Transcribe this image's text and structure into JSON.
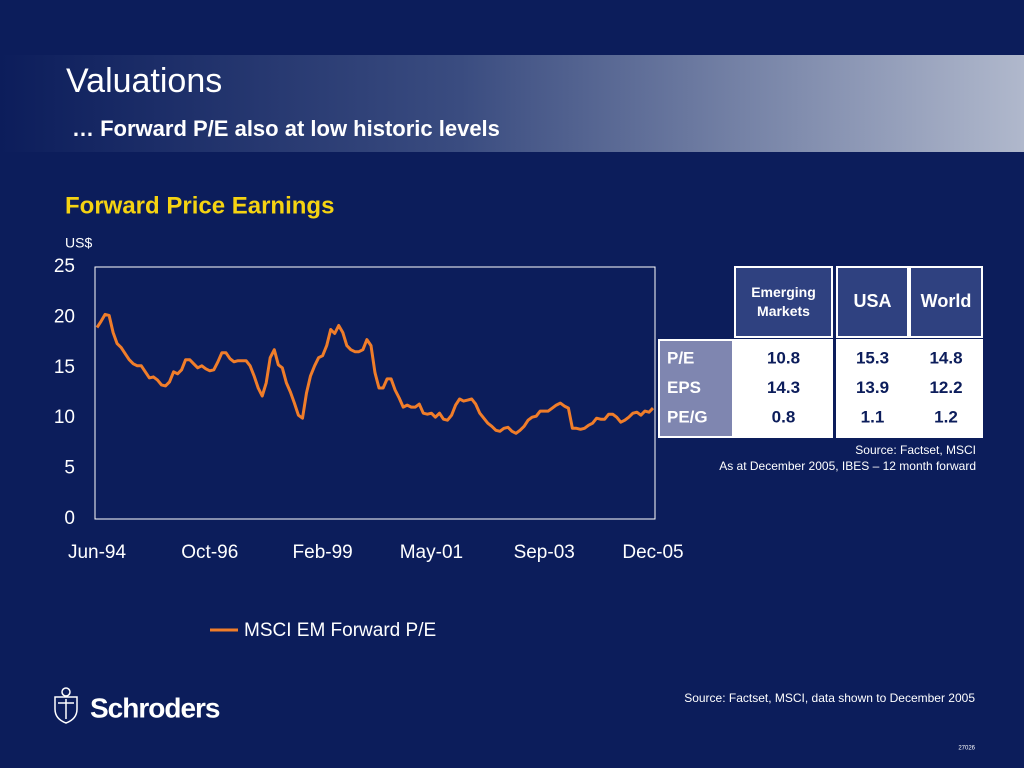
{
  "header": {
    "title": "Valuations",
    "subtitle": "… Forward P/E also at low historic levels"
  },
  "chart_data": {
    "type": "line",
    "title": "Forward Price Earnings",
    "y_label": "US$",
    "categories": [
      "Jun-94",
      null,
      null,
      null,
      null,
      null,
      null,
      null,
      null,
      null,
      null,
      null,
      null,
      null,
      null,
      null,
      null,
      null,
      null,
      null,
      null,
      null,
      null,
      null,
      null,
      null,
      null,
      null,
      "Oct-96",
      null,
      null,
      null,
      null,
      null,
      null,
      null,
      null,
      null,
      null,
      null,
      null,
      null,
      null,
      null,
      null,
      null,
      null,
      null,
      null,
      null,
      null,
      null,
      null,
      null,
      null,
      null,
      "Feb-99",
      null,
      null,
      null,
      null,
      null,
      null,
      null,
      null,
      null,
      null,
      null,
      null,
      null,
      null,
      null,
      null,
      null,
      null,
      null,
      null,
      null,
      null,
      null,
      null,
      null,
      null,
      "May-01",
      null,
      null,
      null,
      null,
      null,
      null,
      null,
      null,
      null,
      null,
      null,
      null,
      null,
      null,
      null,
      null,
      null,
      null,
      null,
      null,
      null,
      null,
      null,
      null,
      null,
      null,
      null,
      "Sep-03",
      null,
      null,
      null,
      null,
      null,
      null,
      null,
      null,
      null,
      null,
      null,
      null,
      null,
      null,
      null,
      null,
      null,
      null,
      null,
      null,
      null,
      null,
      null,
      null,
      null,
      null,
      "Dec-05"
    ],
    "series": [
      {
        "name": "MSCI EM Forward P/E",
        "color": "#f07d2a",
        "values": [
          19.0,
          19.6,
          20.3,
          20.2,
          18.5,
          17.4,
          17.0,
          16.4,
          15.8,
          15.4,
          15.2,
          15.2,
          14.6,
          14.0,
          14.1,
          13.8,
          13.3,
          13.2,
          13.6,
          14.6,
          14.4,
          14.8,
          15.8,
          15.8,
          15.4,
          15.0,
          15.2,
          14.9,
          14.7,
          14.8,
          15.6,
          16.5,
          16.5,
          15.9,
          15.6,
          15.7,
          15.7,
          15.7,
          15.2,
          14.2,
          13.0,
          12.2,
          13.5,
          16.0,
          16.8,
          15.3,
          15.0,
          13.5,
          12.6,
          11.5,
          10.3,
          10.0,
          12.5,
          14.2,
          15.2,
          16.0,
          16.2,
          17.2,
          18.8,
          18.4,
          19.2,
          18.5,
          17.2,
          16.8,
          16.6,
          16.6,
          16.8,
          17.8,
          17.2,
          14.5,
          13.0,
          13.0,
          13.9,
          13.9,
          12.8,
          12.0,
          11.1,
          11.3,
          11.1,
          11.1,
          11.4,
          10.5,
          10.4,
          10.5,
          10.1,
          10.5,
          9.9,
          9.8,
          10.3,
          11.3,
          11.9,
          11.7,
          11.8,
          11.9,
          11.4,
          10.5,
          10.0,
          9.5,
          9.2,
          8.8,
          8.7,
          9.0,
          9.1,
          8.7,
          8.5,
          8.8,
          9.2,
          9.8,
          10.1,
          10.2,
          10.7,
          10.7,
          10.7,
          11.0,
          11.3,
          11.5,
          11.2,
          11.0,
          9.0,
          9.0,
          8.9,
          9.0,
          9.3,
          9.5,
          10.0,
          9.9,
          9.9,
          10.4,
          10.4,
          10.1,
          9.6,
          9.8,
          10.1,
          10.5,
          10.6,
          10.3,
          10.7,
          10.6,
          11.0
        ]
      }
    ],
    "ylim": [
      0,
      25
    ],
    "yticks": [
      0,
      5,
      10,
      15,
      20,
      25
    ],
    "grid": false
  },
  "table": {
    "columns": [
      "Emerging Markets",
      "USA",
      "World"
    ],
    "rows": [
      [
        "P/E",
        10.8,
        15.3,
        14.8
      ],
      [
        "EPS",
        14.3,
        13.9,
        12.2
      ],
      [
        "PE/G",
        0.8,
        1.1,
        1.2
      ]
    ],
    "source": "Source: Factset, MSCI",
    "note": "As at December 2005, IBES – 12 month forward"
  },
  "footer": {
    "logo": "Schroders",
    "source": "Source: Factset, MSCI, data shown to December 2005",
    "code": "27026"
  }
}
